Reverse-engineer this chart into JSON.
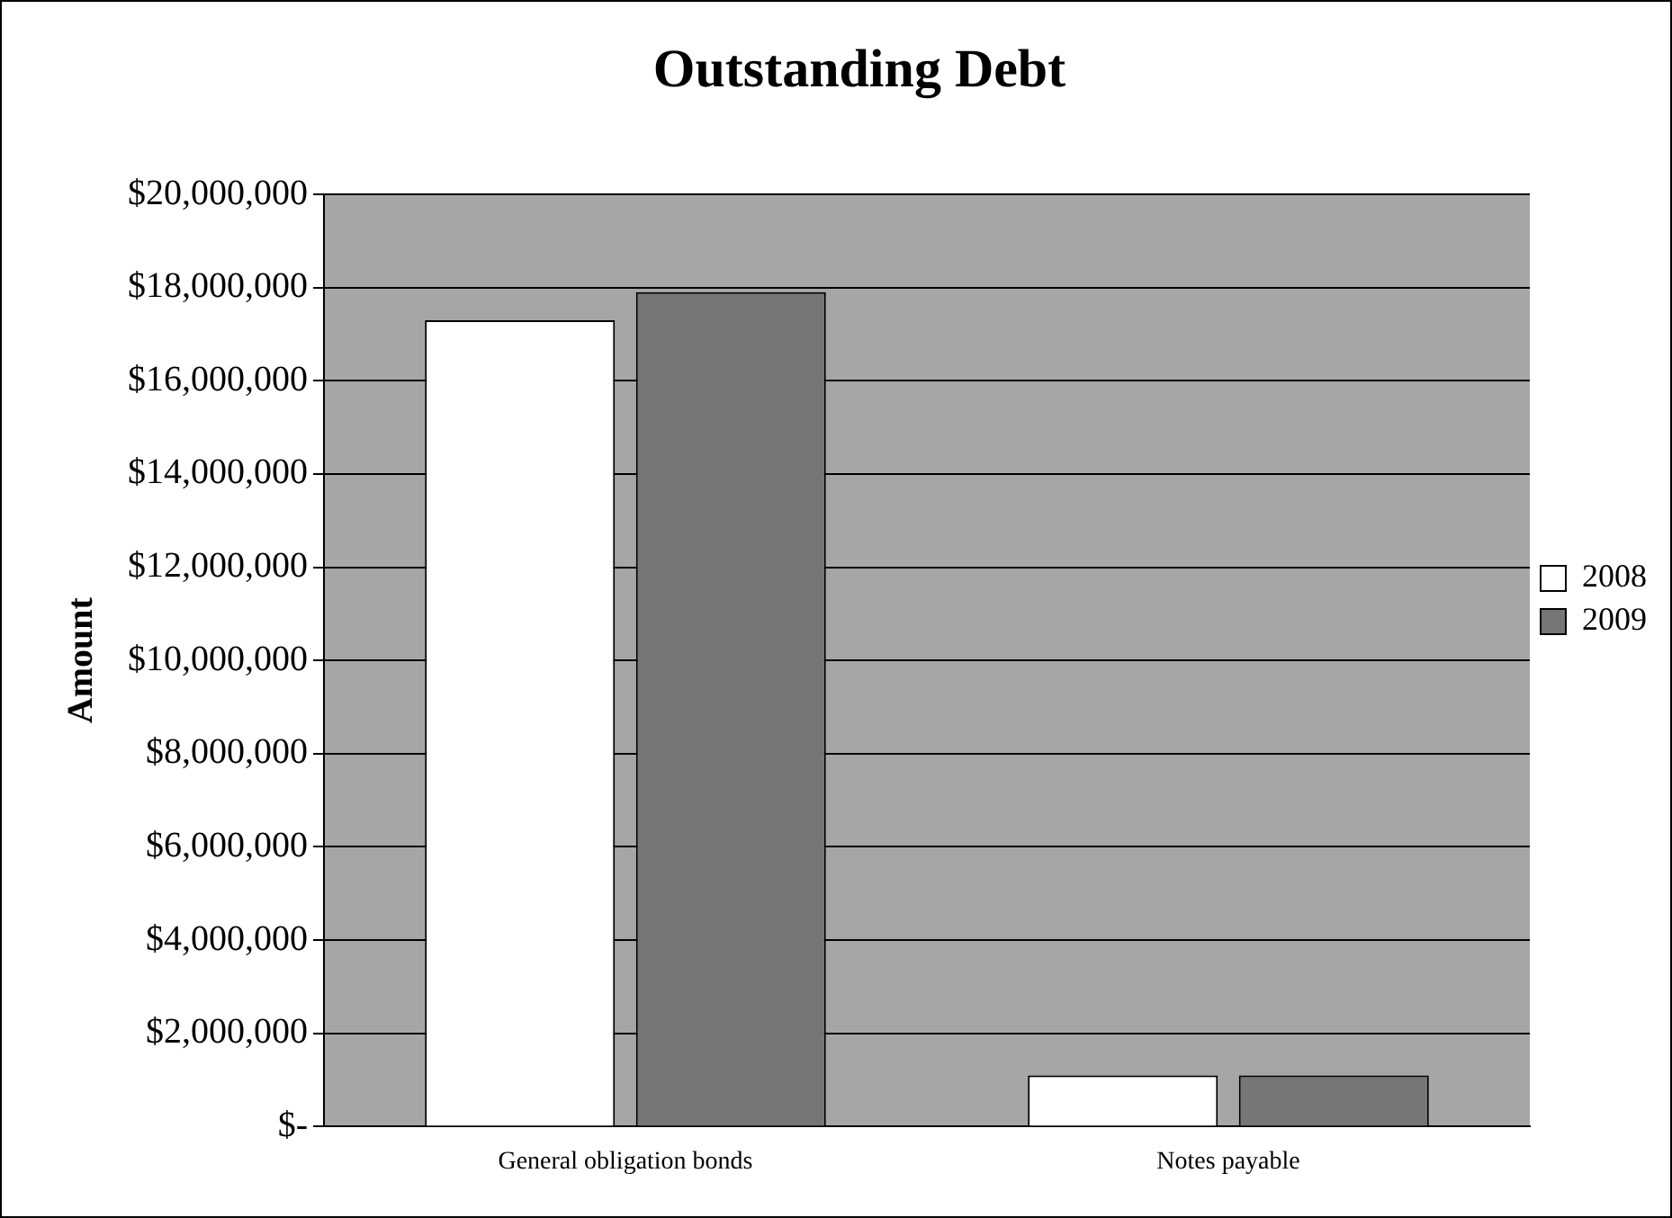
{
  "chart_data": {
    "type": "bar",
    "title": "Outstanding Debt",
    "ylabel": "Amount",
    "categories": [
      "General obligation bonds",
      "Notes payable"
    ],
    "series": [
      {
        "name": "2008",
        "color": "#ffffff",
        "values": [
          17300000,
          1100000
        ]
      },
      {
        "name": "2009",
        "color": "#767676",
        "values": [
          17900000,
          1100000
        ]
      }
    ],
    "ylim": [
      0,
      20000000
    ],
    "yticks": [
      {
        "value": 0,
        "label": "$-"
      },
      {
        "value": 2000000,
        "label": "$2,000,000"
      },
      {
        "value": 4000000,
        "label": "$4,000,000"
      },
      {
        "value": 6000000,
        "label": "$6,000,000"
      },
      {
        "value": 8000000,
        "label": "$8,000,000"
      },
      {
        "value": 10000000,
        "label": "$10,000,000"
      },
      {
        "value": 12000000,
        "label": "$12,000,000"
      },
      {
        "value": 14000000,
        "label": "$14,000,000"
      },
      {
        "value": 16000000,
        "label": "$16,000,000"
      },
      {
        "value": 18000000,
        "label": "$18,000,000"
      },
      {
        "value": 20000000,
        "label": "$20,000,000"
      }
    ],
    "grid": "y",
    "legend": "right"
  }
}
